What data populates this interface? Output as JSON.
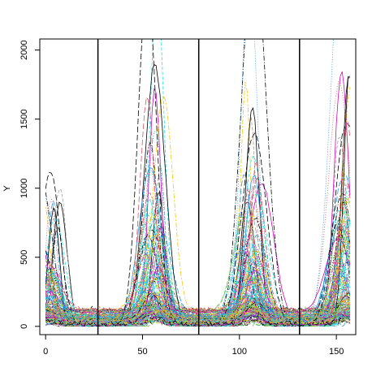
{
  "chart_data": {
    "type": "line",
    "title": "",
    "xlabel": "",
    "ylabel": "Y",
    "xlim": [
      -3,
      160
    ],
    "ylim": [
      -60,
      2080
    ],
    "x_ticks": [
      0,
      50,
      100,
      150
    ],
    "y_ticks": [
      0,
      500,
      1000,
      1500,
      2000
    ],
    "x_tick_labels": [
      "0",
      "50",
      "100",
      "150"
    ],
    "y_tick_labels": [
      "0",
      "500",
      "1000",
      "1500",
      "2000"
    ],
    "vertical_lines": [
      27,
      79,
      131
    ],
    "grid": false,
    "legend": "none",
    "series_count": 140,
    "x_range": [
      0,
      157
    ],
    "peak_centers": [
      2,
      56,
      106,
      155
    ],
    "palette": [
      "#000000",
      "#DF536B",
      "#61D04F",
      "#2297E6",
      "#28E2E5",
      "#CD0BBC",
      "#F5C710",
      "#9E9E9E"
    ]
  }
}
